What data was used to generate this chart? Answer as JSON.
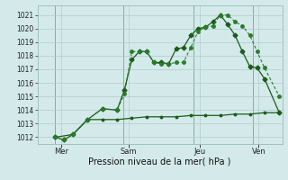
{
  "xlabel": "Pression niveau de la mer( hPa )",
  "background_color": "#d4eaea",
  "grid_color": "#b0cccc",
  "line_color_dark": "#1a5c1a",
  "line_color_mid": "#2d7a2d",
  "ylim": [
    1011.5,
    1021.7
  ],
  "yticks": [
    1012,
    1013,
    1014,
    1015,
    1016,
    1017,
    1018,
    1019,
    1020,
    1021
  ],
  "xlim": [
    -0.3,
    8.0
  ],
  "day_positions": [
    0.5,
    2.8,
    5.2,
    7.2
  ],
  "day_labels": [
    "Mer",
    "Sam",
    "Jeu",
    "Ven"
  ],
  "vline_positions": [
    0.3,
    2.6,
    5.0,
    7.0
  ],
  "series1_x": [
    0.3,
    0.6,
    0.9,
    1.4,
    1.9,
    2.4,
    2.65,
    2.9,
    3.15,
    3.4,
    3.65,
    3.9,
    4.15,
    4.4,
    4.65,
    4.9,
    5.15,
    5.4,
    5.65,
    5.9,
    6.15,
    6.4,
    6.65,
    6.9,
    7.15,
    7.4,
    7.9
  ],
  "series1_y": [
    1012.0,
    1011.8,
    1012.2,
    1013.3,
    1014.1,
    1014.0,
    1015.5,
    1017.7,
    1018.3,
    1018.3,
    1017.5,
    1017.5,
    1017.4,
    1018.5,
    1018.6,
    1019.5,
    1020.0,
    1020.1,
    1020.5,
    1021.0,
    1020.3,
    1019.5,
    1018.3,
    1017.2,
    1017.1,
    1016.3,
    1013.8
  ],
  "series2_x": [
    0.3,
    0.6,
    0.9,
    1.4,
    1.9,
    2.4,
    2.65,
    2.9,
    3.15,
    3.4,
    3.65,
    3.9,
    4.15,
    4.4,
    4.65,
    4.9,
    5.15,
    5.4,
    5.65,
    5.9,
    6.15,
    6.4,
    6.65,
    6.9,
    7.15,
    7.4,
    7.9
  ],
  "series2_y": [
    1012.0,
    1011.8,
    1012.2,
    1013.3,
    1014.1,
    1014.0,
    1015.2,
    1018.3,
    1018.3,
    1018.3,
    1017.5,
    1017.4,
    1017.4,
    1017.5,
    1017.5,
    1018.6,
    1019.8,
    1020.1,
    1020.2,
    1021.0,
    1021.0,
    1020.5,
    1020.2,
    1019.5,
    1018.3,
    1017.1,
    1015.0
  ],
  "series3_x": [
    0.3,
    0.9,
    1.4,
    1.9,
    2.4,
    2.9,
    3.4,
    3.9,
    4.4,
    4.9,
    5.4,
    5.9,
    6.4,
    6.9,
    7.4,
    7.9
  ],
  "series3_y": [
    1012.0,
    1012.2,
    1013.3,
    1013.3,
    1013.3,
    1013.4,
    1013.5,
    1013.5,
    1013.5,
    1013.6,
    1013.6,
    1013.6,
    1013.7,
    1013.7,
    1013.8,
    1013.8
  ]
}
